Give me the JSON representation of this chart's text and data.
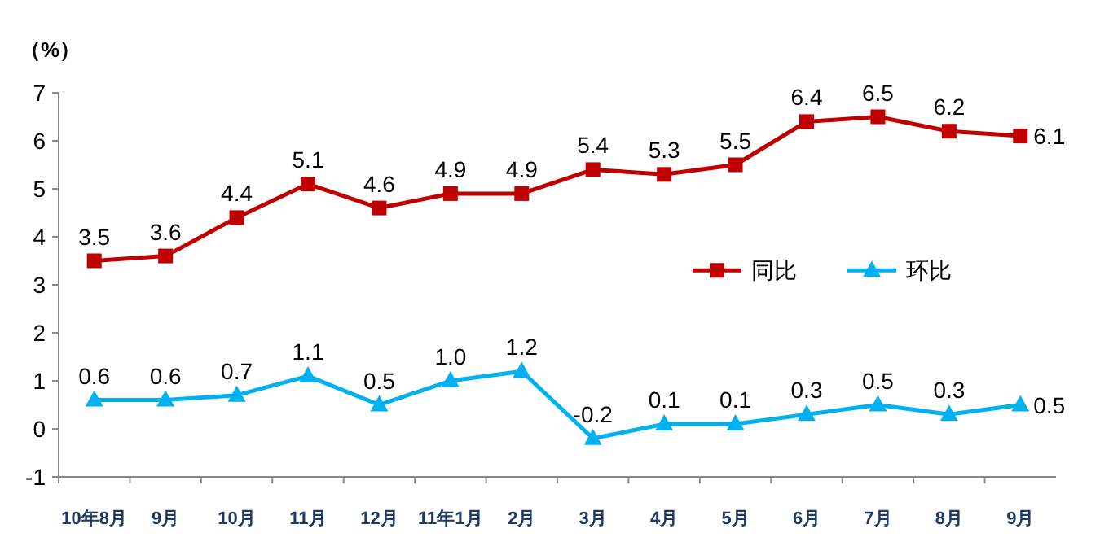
{
  "chart_data": {
    "type": "line",
    "ylabel": "（%）",
    "categories": [
      "10年8月",
      "9月",
      "10月",
      "11月",
      "12月",
      "11年1月",
      "2月",
      "3月",
      "4月",
      "5月",
      "6月",
      "7月",
      "8月",
      "9月"
    ],
    "series": [
      {
        "name": "同比",
        "color": "#c00000",
        "marker": "square",
        "values": [
          3.5,
          3.6,
          4.4,
          5.1,
          4.6,
          4.9,
          4.9,
          5.4,
          5.3,
          5.5,
          6.4,
          6.5,
          6.2,
          6.1
        ],
        "value_labels": [
          "3.5",
          "3.6",
          "4.4",
          "5.1",
          "4.6",
          "4.9",
          "4.9",
          "5.4",
          "5.3",
          "5.5",
          "6.4",
          "6.5",
          "6.2",
          "6.1"
        ]
      },
      {
        "name": "环比",
        "color": "#00b0f0",
        "marker": "triangle",
        "values": [
          0.6,
          0.6,
          0.7,
          1.1,
          0.5,
          1.0,
          1.2,
          -0.2,
          0.1,
          0.1,
          0.3,
          0.5,
          0.3,
          0.5
        ],
        "value_labels": [
          "0.6",
          "0.6",
          "0.7",
          "1.1",
          "0.5",
          "1.0",
          "1.2",
          "-0.2",
          "0.1",
          "0.1",
          "0.3",
          "0.5",
          "0.3",
          "0.5"
        ]
      }
    ],
    "ylim": [
      -1,
      7
    ],
    "yticks": [
      -1,
      0,
      1,
      2,
      3,
      4,
      5,
      6,
      7
    ],
    "grid": false,
    "legend": "right",
    "line_style": "solid"
  }
}
